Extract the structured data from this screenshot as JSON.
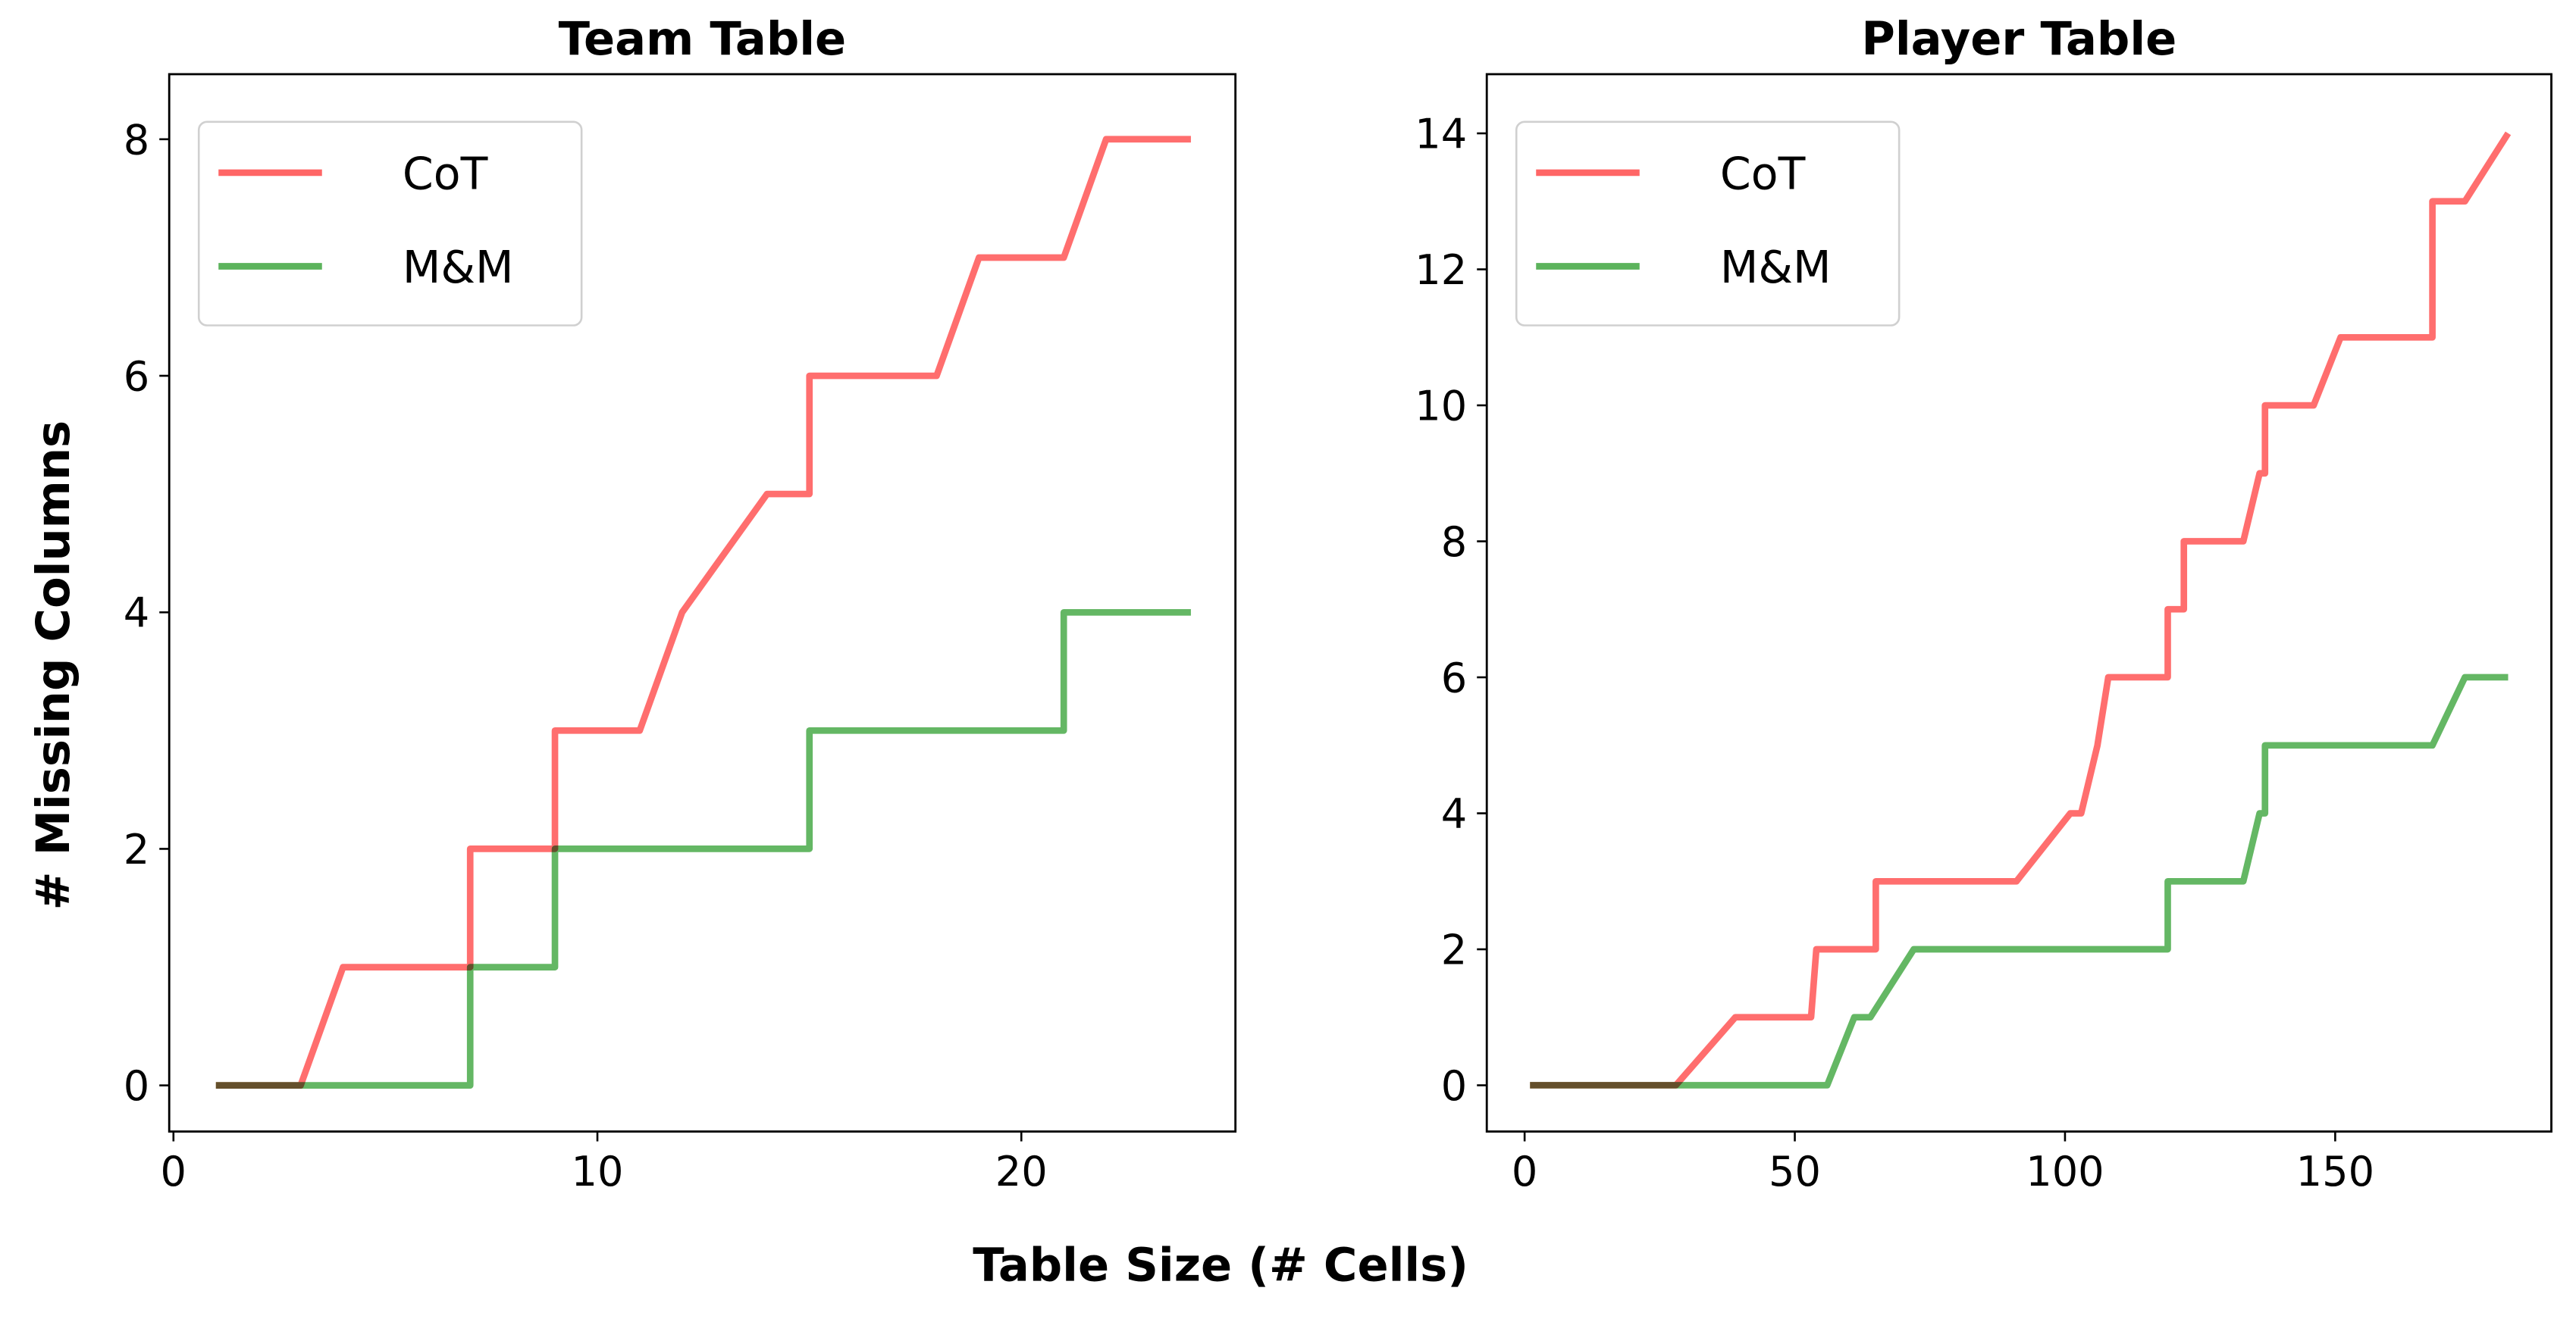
{
  "colors": {
    "cot": "#ff3333",
    "mm": "#2ca02c"
  },
  "ylabel": "# Missing Columns",
  "xlabel": "Table Size (# Cells)",
  "chart_data": [
    {
      "type": "line",
      "title": "Team Table",
      "xlim": [
        -0.1,
        25.05
      ],
      "ylim": [
        -0.39,
        8.55
      ],
      "xticks": [
        0,
        10,
        20
      ],
      "yticks": [
        0,
        2,
        4,
        6,
        8
      ],
      "legend": {
        "position": "top-left",
        "entries": [
          "CoT",
          "M&M"
        ]
      },
      "series": [
        {
          "name": "CoT",
          "x": [
            1,
            3,
            4,
            7,
            7,
            9,
            9,
            11,
            12,
            14,
            15,
            15,
            18,
            19,
            21,
            22,
            24
          ],
          "y": [
            0,
            0,
            1,
            1,
            2,
            2,
            3,
            3,
            4,
            5,
            5,
            6,
            6,
            7,
            7,
            8,
            8
          ]
        },
        {
          "name": "M&M",
          "x": [
            1,
            7,
            7,
            9,
            9,
            15,
            15,
            21,
            21,
            24
          ],
          "y": [
            0,
            0,
            1,
            1,
            2,
            2,
            3,
            3,
            4,
            4
          ]
        }
      ]
    },
    {
      "type": "line",
      "title": "Player Table",
      "xlim": [
        -7,
        190
      ],
      "ylim": [
        -0.68,
        14.87
      ],
      "xticks": [
        0,
        50,
        100,
        150
      ],
      "yticks": [
        0,
        2,
        4,
        6,
        8,
        10,
        12,
        14
      ],
      "legend": {
        "position": "top-left",
        "entries": [
          "CoT",
          "M&M"
        ]
      },
      "series": [
        {
          "name": "CoT",
          "x": [
            1,
            28,
            39,
            53,
            54,
            65,
            65,
            91,
            101,
            103,
            106,
            108,
            119,
            119,
            122,
            122,
            133,
            136,
            137,
            137,
            146,
            151,
            168,
            168,
            174,
            182
          ],
          "y": [
            0,
            0,
            1,
            1,
            2,
            2,
            3,
            3,
            4,
            4,
            5,
            6,
            6,
            7,
            7,
            8,
            8,
            9,
            9,
            10,
            10,
            11,
            11,
            13,
            13,
            14
          ]
        },
        {
          "name": "M&M",
          "x": [
            1,
            56,
            61,
            64,
            72,
            119,
            119,
            133,
            136,
            137,
            137,
            168,
            174,
            182
          ],
          "y": [
            0,
            0,
            1,
            1,
            2,
            2,
            3,
            3,
            4,
            4,
            5,
            5,
            6,
            6
          ]
        }
      ]
    }
  ]
}
